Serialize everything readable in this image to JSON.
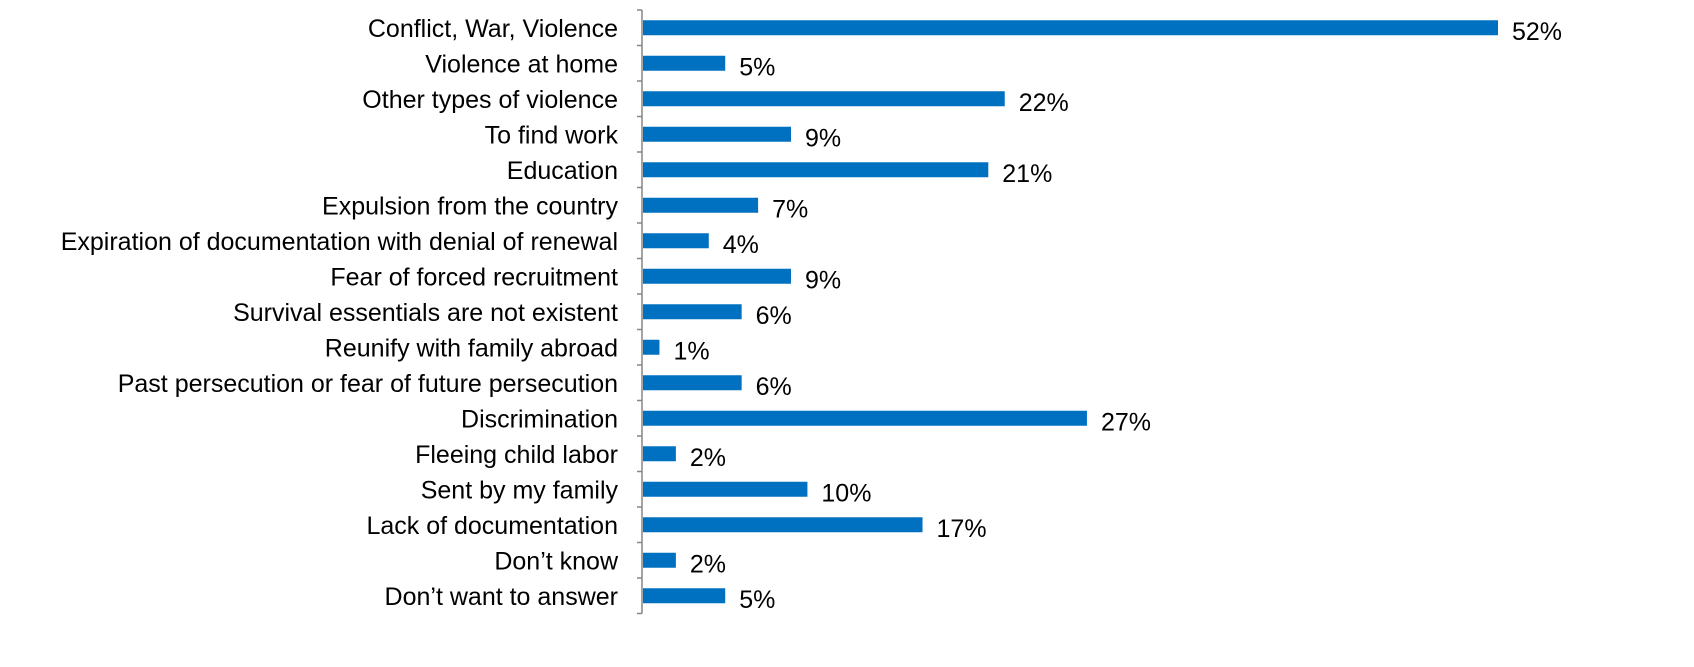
{
  "chart_data": {
    "type": "bar",
    "orientation": "horizontal",
    "categories": [
      "Conflict, War, Violence",
      "Violence at home",
      "Other types of violence",
      "To find work",
      "Education",
      "Expulsion from the country",
      "Expiration of documentation with denial of renewal",
      "Fear of forced recruitment",
      "Survival essentials are not existent",
      "Reunify with family abroad",
      "Past persecution or fear of future persecution",
      "Discrimination",
      "Fleeing child labor",
      "Sent by my family",
      "Lack of documentation",
      "Don’t know",
      "Don’t want to answer"
    ],
    "values": [
      52,
      5,
      22,
      9,
      21,
      7,
      4,
      9,
      6,
      1,
      6,
      27,
      2,
      10,
      17,
      2,
      5
    ],
    "value_labels": [
      "52%",
      "5%",
      "22%",
      "9%",
      "21%",
      "7%",
      "4%",
      "9%",
      "6%",
      "1%",
      "6%",
      "27%",
      "2%",
      "10%",
      "17%",
      "2%",
      "5%"
    ],
    "unit": "%",
    "title": "",
    "xlabel": "",
    "ylabel": "",
    "xlim": [
      0,
      52
    ],
    "grid": false,
    "legend": "none",
    "bar_color": "#0070C0",
    "axis_color": "#868686"
  }
}
